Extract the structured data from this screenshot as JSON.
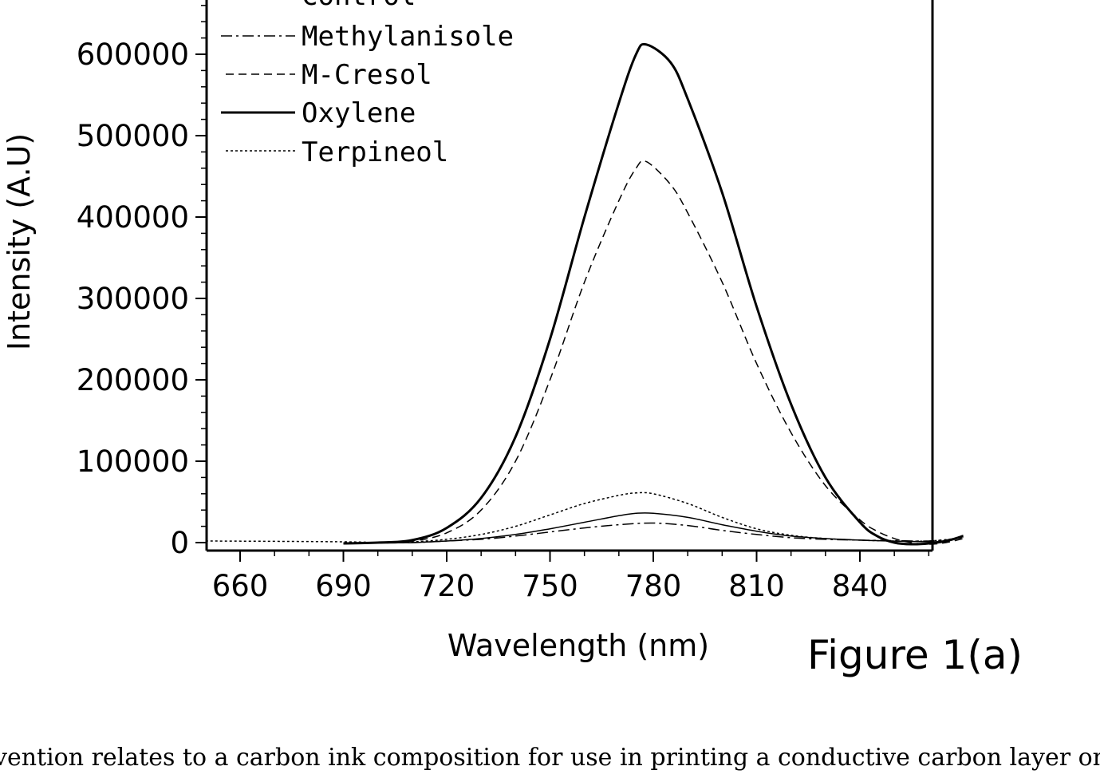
{
  "chart_data": {
    "type": "line",
    "xlabel": "Wavelength (nm)",
    "ylabel": "Intensity (A.U)",
    "xlim": [
      650,
      870
    ],
    "ylim": [
      -10000,
      660000
    ],
    "xticks": [
      660,
      690,
      720,
      750,
      780,
      810,
      840
    ],
    "yticks": [
      0,
      100000,
      200000,
      300000,
      400000,
      500000,
      600000
    ],
    "grid": false,
    "legend_position": "top-left",
    "series": [
      {
        "name": "Control",
        "style": "solid-thin",
        "x": [
          690,
          700,
          710,
          720,
          730,
          740,
          750,
          760,
          770,
          775,
          780,
          790,
          800,
          810,
          820,
          830,
          840,
          848,
          855,
          860,
          865,
          870
        ],
        "y": [
          -1000,
          -500,
          0,
          2000,
          5000,
          10000,
          17000,
          25000,
          33000,
          36000,
          36000,
          31000,
          22000,
          14000,
          8000,
          5000,
          3000,
          2000,
          1500,
          1000,
          2000,
          9000
        ]
      },
      {
        "name": "Methylanisole",
        "style": "dash-dot",
        "x": [
          690,
          700,
          710,
          720,
          730,
          740,
          750,
          760,
          770,
          780,
          790,
          800,
          810,
          820,
          830,
          840,
          850,
          860,
          870
        ],
        "y": [
          -1000,
          -500,
          0,
          2000,
          4000,
          8000,
          13000,
          18000,
          22000,
          24000,
          21000,
          15000,
          10000,
          6000,
          4000,
          3000,
          2500,
          2000,
          5000
        ]
      },
      {
        "name": "M-Cresol",
        "style": "dashed",
        "x": [
          690,
          700,
          710,
          720,
          730,
          740,
          750,
          760,
          770,
          775,
          778,
          785,
          790,
          800,
          810,
          820,
          830,
          840,
          845,
          850,
          855,
          860,
          865,
          870
        ],
        "y": [
          -1000,
          0,
          2000,
          12000,
          40000,
          100000,
          200000,
          320000,
          420000,
          460000,
          468000,
          440000,
          405000,
          320000,
          220000,
          135000,
          70000,
          28000,
          14000,
          5000,
          0,
          -2000,
          0,
          5000
        ]
      },
      {
        "name": "Oxylene",
        "style": "solid-thick",
        "x": [
          690,
          700,
          710,
          720,
          730,
          740,
          750,
          760,
          770,
          775,
          778,
          785,
          790,
          800,
          810,
          820,
          830,
          840,
          845,
          850,
          855,
          860,
          865,
          870
        ],
        "y": [
          -1000,
          0,
          3000,
          18000,
          55000,
          130000,
          250000,
          400000,
          540000,
          600000,
          612000,
          590000,
          545000,
          430000,
          290000,
          170000,
          80000,
          25000,
          8000,
          0,
          -2000,
          -1000,
          2000,
          8000
        ]
      },
      {
        "name": "Terpineol",
        "style": "dotted",
        "x": [
          650,
          690,
          700,
          710,
          720,
          730,
          740,
          750,
          760,
          770,
          775,
          780,
          790,
          800,
          810,
          820,
          830,
          840,
          850,
          860,
          870
        ],
        "y": [
          2000,
          1000,
          0,
          1000,
          4000,
          10000,
          20000,
          34000,
          48000,
          58000,
          61000,
          60000,
          48000,
          31000,
          17000,
          9000,
          5000,
          3000,
          2000,
          2000,
          6000
        ]
      }
    ]
  },
  "figure_label": "Figure 1(a)",
  "caption": "vention relates to a carbon ink composition for use in printing a conductive carbon layer onto"
}
